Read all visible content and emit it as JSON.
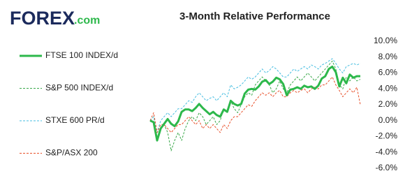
{
  "logo": {
    "brand": "FOREX",
    "suffix": ".com"
  },
  "chart_data": {
    "type": "line",
    "title": "3-Month Relative Performance",
    "categories": [
      null,
      null,
      null,
      null,
      null,
      null,
      null,
      null,
      null,
      null,
      null,
      null,
      null,
      null,
      null,
      null,
      null,
      null,
      null,
      null,
      null,
      null,
      null,
      null,
      null,
      null,
      null,
      null,
      null,
      null,
      null,
      null,
      null,
      null,
      null,
      null,
      null,
      null,
      null,
      null,
      null,
      null,
      null,
      null,
      null,
      null,
      null,
      null,
      null,
      null,
      null,
      null,
      null,
      null,
      null,
      null,
      null,
      null,
      null,
      null,
      null
    ],
    "ylim": [
      -6,
      10
    ],
    "yticks": [
      {
        "value": 10,
        "label": "10.0%"
      },
      {
        "value": 8,
        "label": "8.0%"
      },
      {
        "value": 6,
        "label": "6.0%"
      },
      {
        "value": 4,
        "label": "4.0%"
      },
      {
        "value": 2,
        "label": "2.0%"
      },
      {
        "value": 0,
        "label": "0.0%"
      },
      {
        "value": -2,
        "label": "-2.0%"
      },
      {
        "value": -4,
        "label": "-4.0%"
      },
      {
        "value": -6,
        "label": "-6.0%"
      }
    ],
    "y_axis_side": "right",
    "grid": false,
    "legend": "left",
    "series": [
      {
        "name": "FTSE 100 INDEX/d",
        "color": "#2db84b",
        "dashed": false,
        "values": [
          0,
          -0.2,
          -2.5,
          -1,
          -0.4,
          0.2,
          -0.4,
          -0.7,
          -0.1,
          1.1,
          1.4,
          1.4,
          1.2,
          1.6,
          2.1,
          1.6,
          1.2,
          0.8,
          1.1,
          0.7,
          0.5,
          1.4,
          1.1,
          2.5,
          2.1,
          1.9,
          2.1,
          3.4,
          3.9,
          4.0,
          3.9,
          4.3,
          4.9,
          5.1,
          4.6,
          4.9,
          5.4,
          5.2,
          4.6,
          3.2,
          3.9,
          4.0,
          4.2,
          4.0,
          4.4,
          4.2,
          4.3,
          4.0,
          4.4,
          5.3,
          5.6,
          6.5,
          6.8,
          6.1,
          4.3,
          5.4,
          4.7,
          5.8,
          5.4,
          5.6,
          5.6
        ]
      },
      {
        "name": "S&P 500 INDEX/d",
        "color": "#3aa84a",
        "dashed": true,
        "values": [
          0,
          0.5,
          -1.5,
          -1,
          -0.5,
          -1.5,
          -3.8,
          -2.5,
          -1.5,
          -2.5,
          -1,
          0,
          0.5,
          0,
          1,
          0.5,
          -0.5,
          0,
          0.5,
          -0.5,
          0,
          1.5,
          1,
          2.5,
          1.5,
          1,
          2,
          3,
          3.5,
          3.2,
          4.5,
          5,
          5.5,
          5,
          4.5,
          3.5,
          4,
          5,
          4,
          3.5,
          4.5,
          5,
          5.5,
          5,
          5.5,
          6,
          5.5,
          5,
          5.5,
          6,
          6.5,
          7,
          7.5,
          6.5,
          4.5,
          4,
          5.5,
          5,
          5.5,
          5,
          5.2
        ]
      },
      {
        "name": "STXE 600 PR/d",
        "color": "#45bde0",
        "dashed": true,
        "values": [
          0,
          0.5,
          -1.5,
          0,
          0.5,
          1,
          0.5,
          1,
          1.5,
          1.5,
          2,
          2.5,
          2.3,
          3,
          3.5,
          3,
          2.5,
          2.8,
          3,
          2.5,
          3,
          3.5,
          3,
          4.5,
          4,
          4.2,
          4.5,
          5,
          5.5,
          5.2,
          5.5,
          6,
          6.5,
          6,
          6.3,
          6.8,
          6.5,
          6,
          5.5,
          5.5,
          6,
          6.5,
          6.2,
          6.5,
          6.8,
          6.5,
          7,
          6.8,
          6.5,
          7,
          7.2,
          7.5,
          7.8,
          7.2,
          6.5,
          6,
          6.8,
          7,
          7.2,
          7,
          7.2
        ]
      },
      {
        "name": "S&P/ASX 200",
        "color": "#e8502a",
        "dashed": true,
        "values": [
          0,
          1,
          -1.5,
          -0.5,
          -0.5,
          -1,
          -1.5,
          -1,
          -0.5,
          -0.5,
          0,
          0.5,
          0,
          -0.5,
          0,
          -1,
          -0.5,
          -1,
          -0.5,
          -1,
          -1.5,
          -0.5,
          -1,
          0,
          0.5,
          0.5,
          1,
          1.5,
          2,
          1.8,
          2.5,
          3,
          3.5,
          3.2,
          3.5,
          3,
          3.5,
          3.8,
          3,
          3,
          3.5,
          3.8,
          3.5,
          3.8,
          4,
          3.5,
          4,
          4.2,
          4,
          4.5,
          4.5,
          5,
          5.5,
          4.5,
          3.8,
          3,
          3.5,
          4,
          3.5,
          4.2,
          2
        ]
      }
    ]
  }
}
